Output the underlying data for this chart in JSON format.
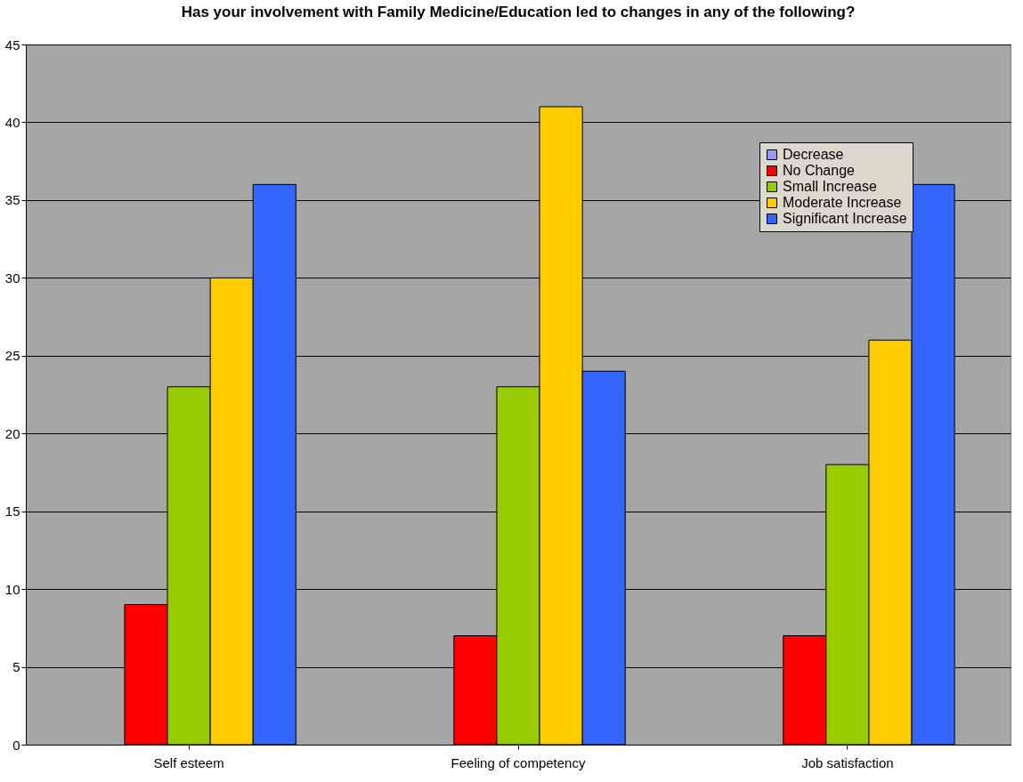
{
  "chart_data": {
    "type": "bar",
    "title": "Has your involvement with Family Medicine/Education led to changes in any of the following?",
    "categories": [
      "Self esteem",
      "Feeling of competency",
      "Job satisfaction"
    ],
    "series": [
      {
        "name": "Decrease",
        "color": "#9999ff",
        "values": [
          0,
          0,
          0
        ]
      },
      {
        "name": "No Change",
        "color": "#ff0000",
        "values": [
          9,
          7,
          7
        ]
      },
      {
        "name": "Small Increase",
        "color": "#99cc00",
        "values": [
          23,
          23,
          18
        ]
      },
      {
        "name": "Moderate Increase",
        "color": "#ffcc00",
        "values": [
          30,
          41,
          26
        ]
      },
      {
        "name": "Significant Increase",
        "color": "#3366ff",
        "values": [
          36,
          24,
          36
        ]
      }
    ],
    "ylim": [
      0,
      45
    ],
    "yticks": [
      0,
      5,
      10,
      15,
      20,
      25,
      30,
      35,
      40,
      45
    ],
    "grid": "y",
    "legend": "top right"
  }
}
